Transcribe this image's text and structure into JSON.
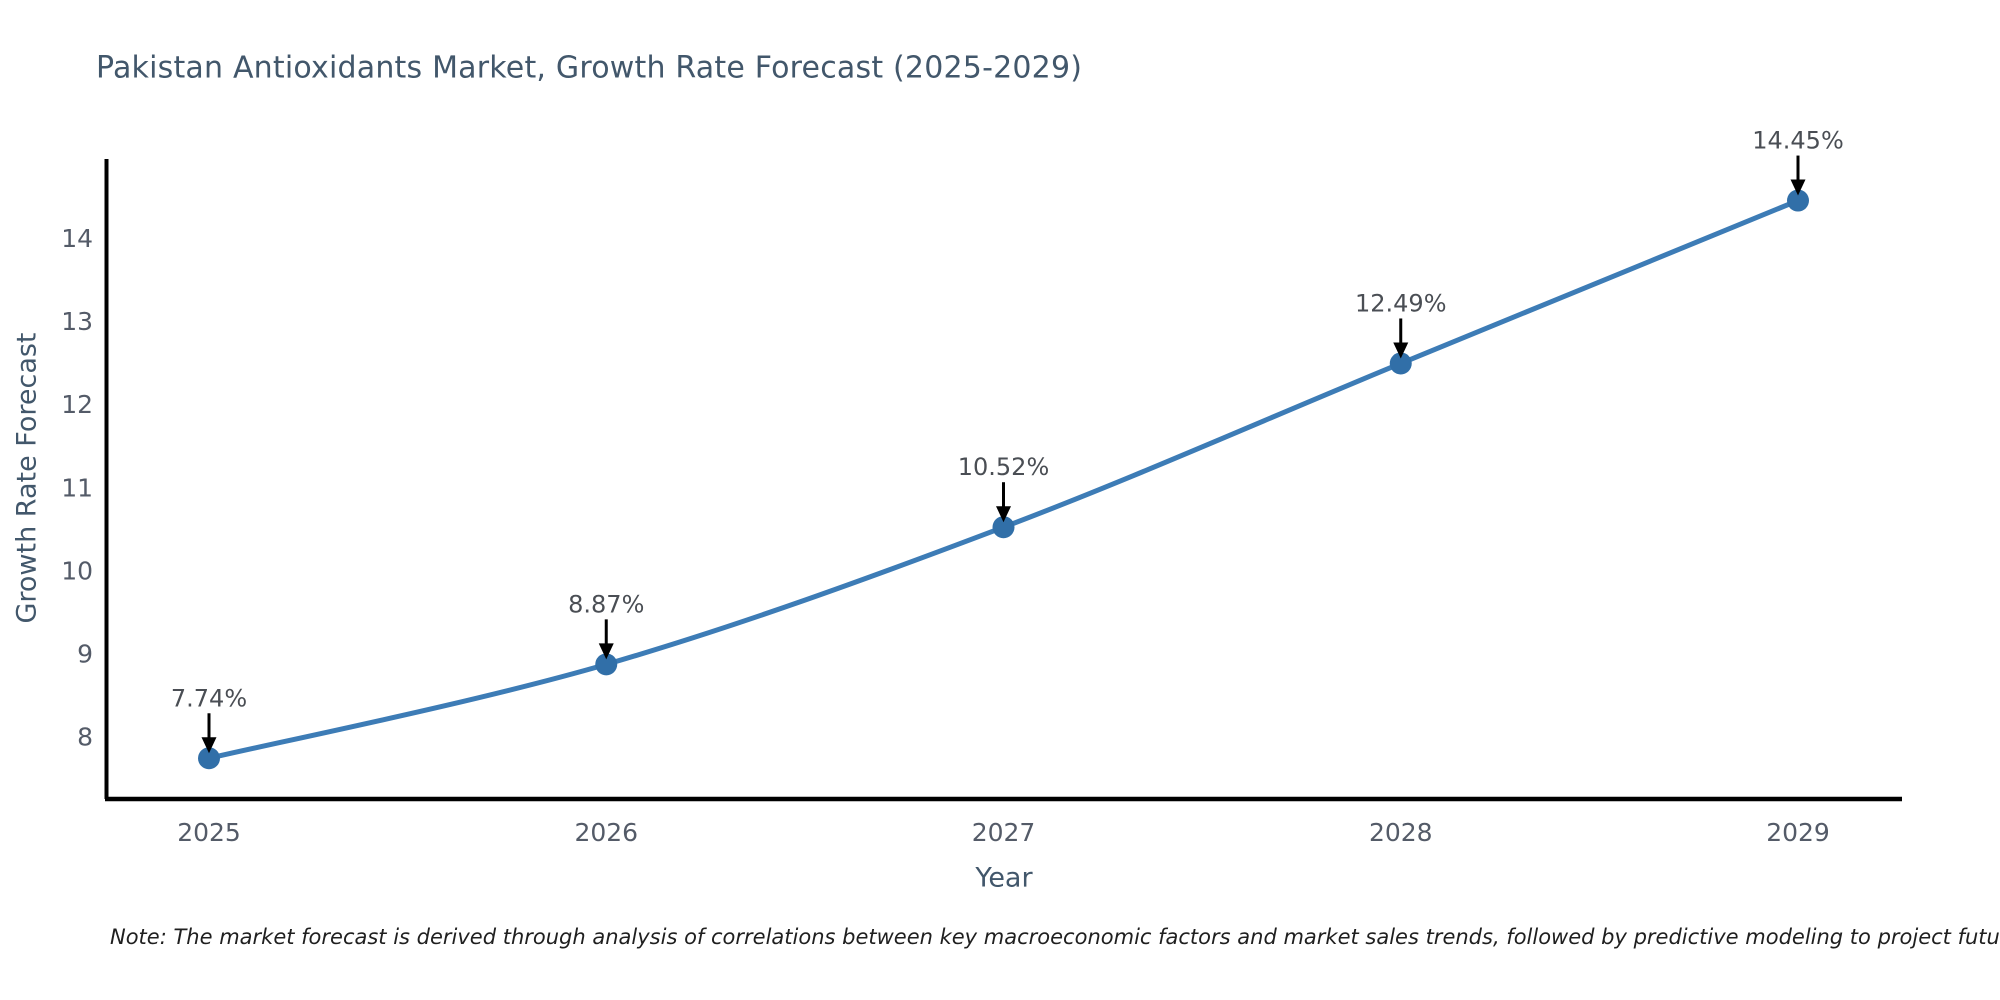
{
  "page": {
    "background": "#ffffff"
  },
  "chart": {
    "title": "Pakistan Antioxidants Market, Growth Rate Forecast (2025-2029)",
    "xlabel": "Year",
    "ylabel": "Growth Rate Forecast",
    "note": "Note: The market forecast is derived through analysis of correlations between key macroeconomic factors and market sales trends, followed by predictive modeling to project future sales."
  },
  "chart_data": {
    "type": "line",
    "title": "Pakistan Antioxidants Market, Growth Rate Forecast (2025-2029)",
    "xlabel": "Year",
    "ylabel": "Growth Rate Forecast",
    "categories": [
      "2025",
      "2026",
      "2027",
      "2028",
      "2029"
    ],
    "values": [
      7.74,
      8.87,
      10.52,
      12.49,
      14.45
    ],
    "point_labels": [
      "7.74%",
      "8.87%",
      "10.52%",
      "12.49%",
      "14.45%"
    ],
    "yticks": [
      8,
      9,
      10,
      11,
      12,
      13,
      14
    ],
    "ylim": [
      7.25,
      14.95
    ],
    "grid": false,
    "legend": null,
    "colors": {
      "line": "#3d7cb6",
      "marker": "#316fa8",
      "axis": "#000000",
      "tick_label": "#545b68",
      "annotation_text": "#4a4e54",
      "annotation_arrow": "#000000"
    }
  }
}
